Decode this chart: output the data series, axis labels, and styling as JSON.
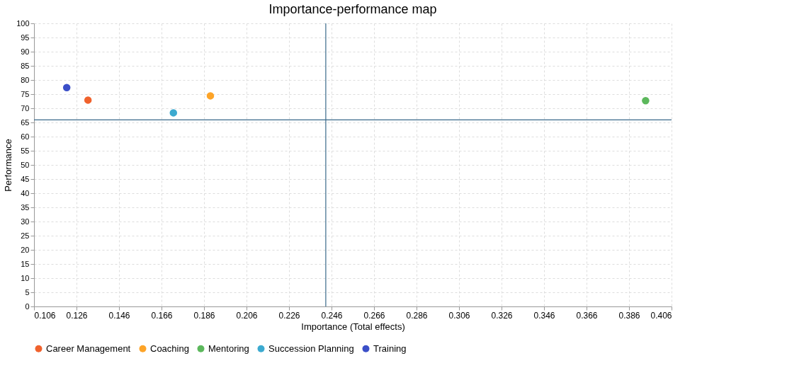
{
  "chart_data": {
    "type": "scatter",
    "title": "Importance-performance map",
    "xlabel": "Importance (Total effects)",
    "ylabel": "Performance",
    "series": [
      {
        "name": "Career Management",
        "color": "#f0622d",
        "x": [
          0.1314
        ],
        "values": [
          72.9
        ]
      },
      {
        "name": "Coaching",
        "color": "#fda428",
        "x": [
          0.189
        ],
        "values": [
          74.4
        ]
      },
      {
        "name": "Mentoring",
        "color": "#5cb85c",
        "x": [
          0.3938
        ],
        "values": [
          72.7
        ]
      },
      {
        "name": "Succession Planning",
        "color": "#3caad0",
        "x": [
          0.1716
        ],
        "values": [
          68.4
        ]
      },
      {
        "name": "Training",
        "color": "#3b4fc8",
        "x": [
          0.1214
        ],
        "values": [
          77.3
        ]
      }
    ],
    "xlim": [
      0.106,
      0.406
    ],
    "xticks": [
      0.106,
      0.126,
      0.146,
      0.166,
      0.186,
      0.206,
      0.226,
      0.246,
      0.266,
      0.286,
      0.306,
      0.326,
      0.346,
      0.366,
      0.386,
      0.406
    ],
    "ylim": [
      0,
      100
    ],
    "yticks": [
      0,
      5,
      10,
      15,
      20,
      25,
      30,
      35,
      40,
      45,
      50,
      55,
      60,
      65,
      70,
      75,
      80,
      85,
      90,
      95,
      100
    ],
    "ref_lines": [
      {
        "axis": "x",
        "value": 0.2433,
        "color": "#3a6a8a"
      },
      {
        "axis": "y",
        "value": 65.9,
        "color": "#3a6a8a"
      }
    ],
    "grid": true,
    "legend": "bottom",
    "marker": "circle"
  }
}
